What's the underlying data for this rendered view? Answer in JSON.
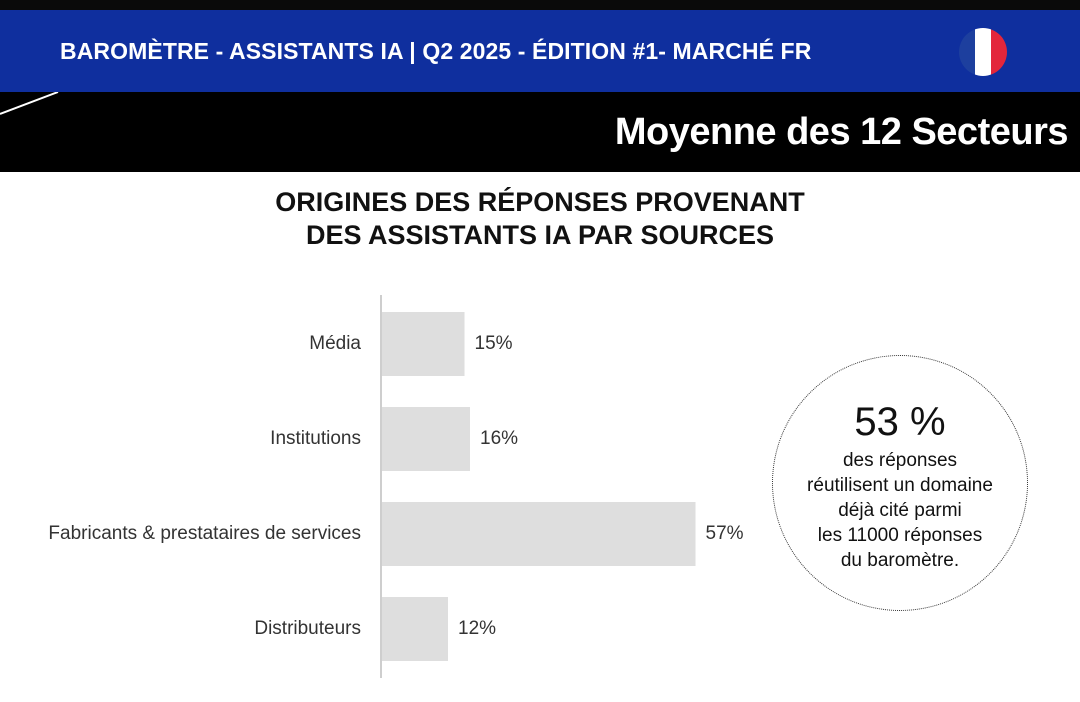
{
  "header": {
    "title": "BAROMÈTRE - ASSISTANTS IA | Q2 2025 - ÉDITION #1- MARCHÉ FR",
    "flag_colors": [
      "#1d3f9e",
      "#ffffff",
      "#e3263b"
    ]
  },
  "banner": {
    "subtitle": "Moyenne des 12 Secteurs"
  },
  "chart_title": {
    "line1": "ORIGINES DES RÉPONSES PROVENANT",
    "line2": "DES ASSISTANTS IA PAR SOURCES"
  },
  "chart_data": {
    "type": "bar",
    "orientation": "horizontal",
    "categories": [
      "Média",
      "Institutions",
      "Fabricants & prestataires de services",
      "Distributeurs"
    ],
    "values": [
      15,
      16,
      57,
      12
    ],
    "value_labels": [
      "15%",
      "16%",
      "57%",
      "12%"
    ],
    "bar_color": "#dedede",
    "grid": false,
    "legend": "none"
  },
  "callout": {
    "big": "53 %",
    "lines": [
      "des réponses",
      "réutilisent un domaine",
      "déjà cité parmi",
      "les 11000 réponses",
      "du baromètre."
    ]
  },
  "colors": {
    "blue": "#0f2f9e",
    "black": "#000000",
    "bar": "#dedede"
  }
}
